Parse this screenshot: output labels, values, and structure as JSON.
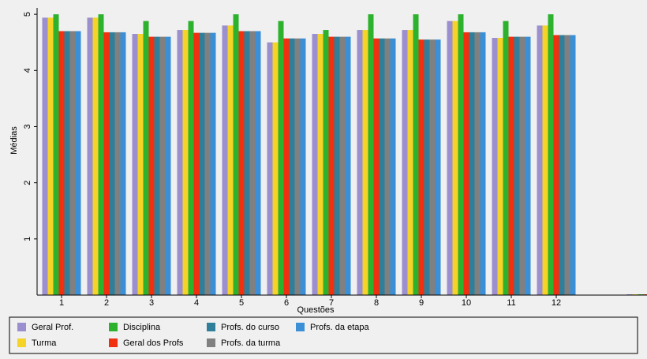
{
  "chart_data": {
    "type": "bar",
    "x_label": "Questões",
    "y_label": "Médias",
    "categories": [
      "1",
      "2",
      "3",
      "4",
      "5",
      "6",
      "7",
      "8",
      "9",
      "10",
      "11",
      "12",
      null,
      null
    ],
    "series": [
      {
        "name": "Geral Prof.",
        "color": "#9b8fcf",
        "values": [
          4.94,
          4.94,
          4.65,
          4.72,
          4.8,
          4.5,
          4.65,
          4.72,
          4.72,
          4.88,
          4.58,
          4.8,
          null,
          0
        ]
      },
      {
        "name": "Turma",
        "color": "#f5d327",
        "values": [
          4.94,
          4.94,
          4.65,
          4.72,
          4.8,
          4.5,
          4.65,
          4.72,
          4.72,
          4.88,
          4.58,
          4.8,
          null,
          0
        ]
      },
      {
        "name": "Disciplina",
        "color": "#2db22d",
        "values": [
          5.0,
          5.0,
          4.88,
          4.88,
          5.0,
          4.88,
          4.72,
          5.0,
          5.0,
          5.0,
          4.88,
          5.0,
          null,
          0
        ]
      },
      {
        "name": "Geral dos Profs",
        "color": "#f0300e",
        "values": [
          4.7,
          4.68,
          4.6,
          4.67,
          4.7,
          4.57,
          4.6,
          4.57,
          4.55,
          4.68,
          4.6,
          4.63,
          null,
          0
        ]
      },
      {
        "name": "Profs. do curso",
        "color": "#2f7f9b",
        "values": [
          4.7,
          4.68,
          4.6,
          4.67,
          4.7,
          4.57,
          4.6,
          4.57,
          4.55,
          4.68,
          4.6,
          4.63,
          null,
          0
        ]
      },
      {
        "name": "Profs. da turma",
        "color": "#808080",
        "values": [
          4.7,
          4.68,
          4.6,
          4.67,
          4.7,
          4.57,
          4.6,
          4.57,
          4.55,
          4.68,
          4.6,
          4.63,
          null,
          0
        ]
      },
      {
        "name": "Profs. da etapa",
        "color": "#3a8fd6",
        "values": [
          4.7,
          4.68,
          4.6,
          4.67,
          4.7,
          4.57,
          4.6,
          4.57,
          4.55,
          4.68,
          4.6,
          4.63,
          null,
          0
        ]
      }
    ],
    "ylim": [
      0,
      5.1
    ],
    "yticks": [
      1,
      2,
      3,
      4,
      5
    ],
    "legend": "bottom"
  }
}
